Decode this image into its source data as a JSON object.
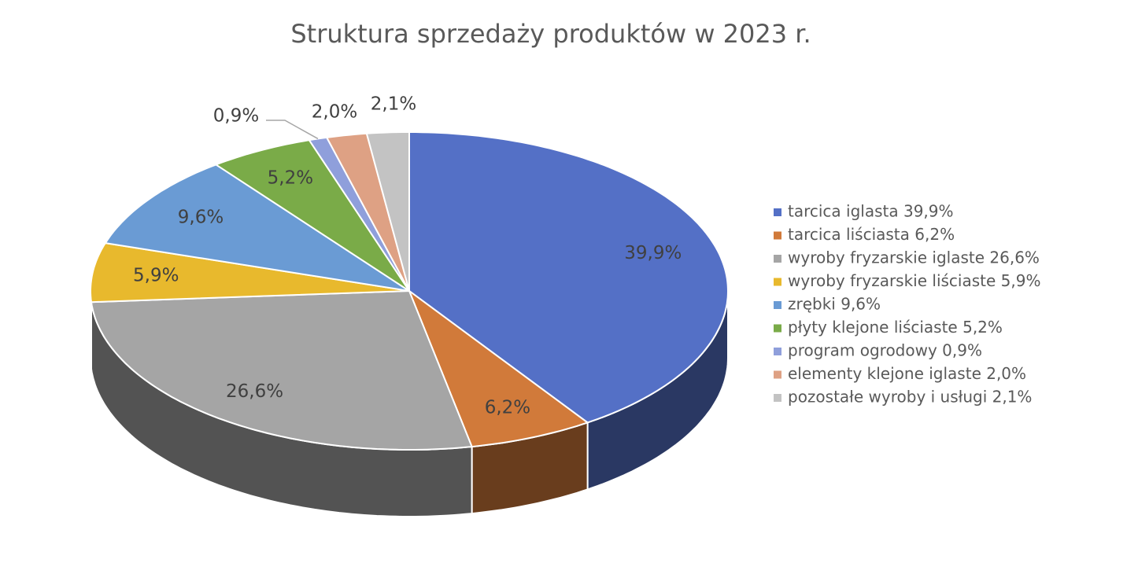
{
  "chart_data": {
    "type": "pie3d",
    "title": "Struktura sprzedaży produktów w 2023 r.",
    "categories": [
      "tarcica iglasta 39,9%",
      "tarcica liściasta 6,2%",
      "wyroby fryzarskie iglaste 26,6%",
      "wyroby fryzarskie liściaste 5,9%",
      "zrębki 9,6%",
      "płyty klejone liściaste 5,2%",
      "program ogrodowy 0,9%",
      "elementy klejone iglaste 2,0%",
      "pozostałe wyroby i usługi 2,1%"
    ],
    "values": [
      39.9,
      6.2,
      26.6,
      5.9,
      9.6,
      5.2,
      0.9,
      2.0,
      2.1
    ],
    "value_labels": [
      "39,9%",
      "6,2%",
      "26,6%",
      "5,9%",
      "9,6%",
      "5,2%",
      "0,9%",
      "2,0%",
      "2,1%"
    ],
    "colors": [
      "#5470c6",
      "#d17a3a",
      "#a5a5a5",
      "#e8b92d",
      "#6a9bd4",
      "#7aab48",
      "#8f9fdb",
      "#dea184",
      "#c3c3c3"
    ],
    "legend": "right"
  }
}
